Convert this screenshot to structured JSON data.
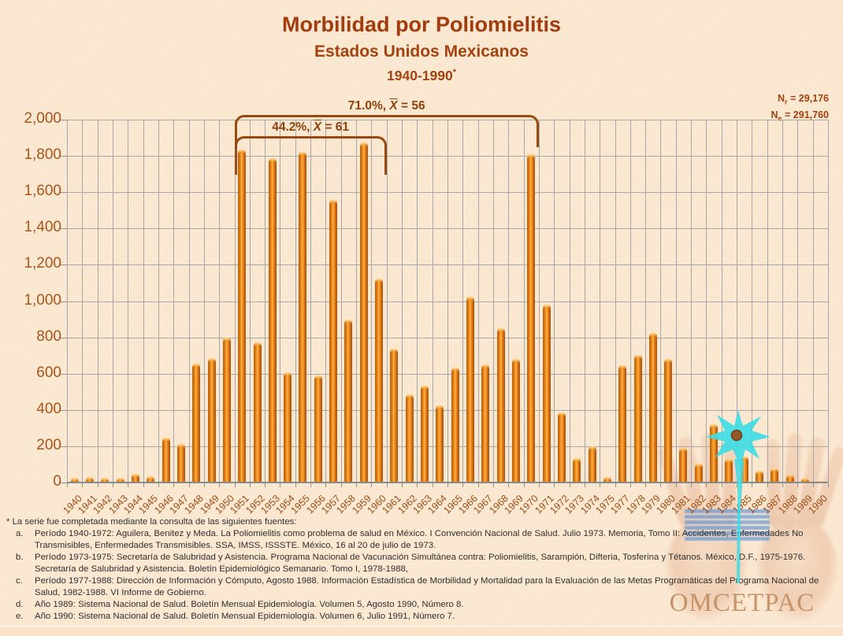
{
  "header": {
    "title": "Morbilidad por Poliomielitis",
    "subtitle": "Estados Unidos Mexicanos",
    "period": "1940-1990",
    "period_superscript": "*"
  },
  "stats": {
    "nr": {
      "base": "N",
      "sub": "r",
      "rest": " = 29,176"
    },
    "ne": {
      "base": "N",
      "sub": "e",
      "rest": " = 291,760"
    }
  },
  "chart_data": {
    "type": "bar",
    "title": "Morbilidad por Poliomielitis",
    "subtitle": "Estados Unidos Mexicanos",
    "period": "1940-1990*",
    "xlabel": "",
    "ylabel": "",
    "ylim": [
      0,
      2000
    ],
    "ytick_step": 200,
    "grid": true,
    "bar_color": "#e8821a",
    "gridline_color": "#a7a7a7",
    "categories": [
      "1940",
      "1941",
      "1942",
      "1943",
      "1944",
      "1945",
      "1946",
      "1947",
      "1948",
      "1949",
      "1950",
      "1951",
      "1952",
      "1953",
      "1954",
      "1955",
      "1956",
      "1957",
      "1958",
      "1959",
      "1960",
      "1961",
      "1962",
      "1963",
      "1964",
      "1965",
      "1966",
      "1967",
      "1968",
      "1969",
      "1970",
      "1971",
      "1972",
      "1973",
      "1974",
      "1975",
      "1977",
      "1978",
      "1979",
      "1980",
      "1981",
      "1982",
      "1983",
      "1984",
      "1985",
      "1986",
      "1987",
      "1988",
      "1989",
      "1990"
    ],
    "values": [
      20,
      25,
      20,
      20,
      45,
      30,
      245,
      210,
      650,
      680,
      795,
      1830,
      770,
      1785,
      605,
      1820,
      585,
      1555,
      895,
      1870,
      1120,
      735,
      480,
      530,
      420,
      630,
      1020,
      645,
      845,
      675,
      1805,
      975,
      380,
      130,
      195,
      25,
      640,
      700,
      820,
      675,
      185,
      100,
      315,
      125,
      140,
      60,
      75,
      40,
      20,
      5
    ],
    "annotations": [
      {
        "pre": "44.2%, ",
        "x_symbol": "X",
        "post": " = 61",
        "from": "1951",
        "to": "1961",
        "top": 21,
        "leg": 46
      },
      {
        "pre": "71.0%, ",
        "x_symbol": "X",
        "post": " = 56",
        "from": "1951",
        "to": "1971",
        "top": -6,
        "leg": 38
      }
    ]
  },
  "footnotes": {
    "intro": "* La serie fue completada mediante la consulta de las siguientes fuentes:",
    "items": [
      {
        "id": "a.",
        "text": "Período 1940-1972: Aguilera, Benitez y Meda. La Poliomielitis como problema de salud en México. I Convención Nacional de Salud. Julio 1973. Memoria, Tomo II: Accidentes, Enfermedades No Transmisibles, Enfermedades Transmisibles. SSA, IMSS, ISSSTE. México, 16 al 20 de julio de 1973."
      },
      {
        "id": "b.",
        "text": "Período 1973-1975: Secretaría de Salubridad y Asistencia. Programa Nacional de Vacunación Simultánea contra: Poliomielitis, Sarampión, Difteria, Tosferina y Tétanos. México, D.F., 1975-1976. Secretaría de Salubridad y Asistencia. Boletín Epidemiológico Semanario. Tomo I, 1978-1988,"
      },
      {
        "id": "c.",
        "text": "Período 1977-1988: Dirección de Información y Cómputo, Agosto 1988. Información Estadística de Morbilidad y Mortalidad para la Evaluación de las Metas Programáticas del Programa Nacional de Salud, 1982-1988. VI Informe de Gobierno."
      },
      {
        "id": "d.",
        "text": "Año 1989: Sistema Nacional de Salud. Boletín Mensual Epidemiología. Volumen 5, Agosto 1990, Número 8."
      },
      {
        "id": "e.",
        "text": "Año 1990: Sistema Nacional de Salud. Boletín Mensual Epidemiología. Volumen 6, Julio 1991, Número 7."
      }
    ]
  },
  "logo": {
    "text": "OMCETPAC"
  }
}
